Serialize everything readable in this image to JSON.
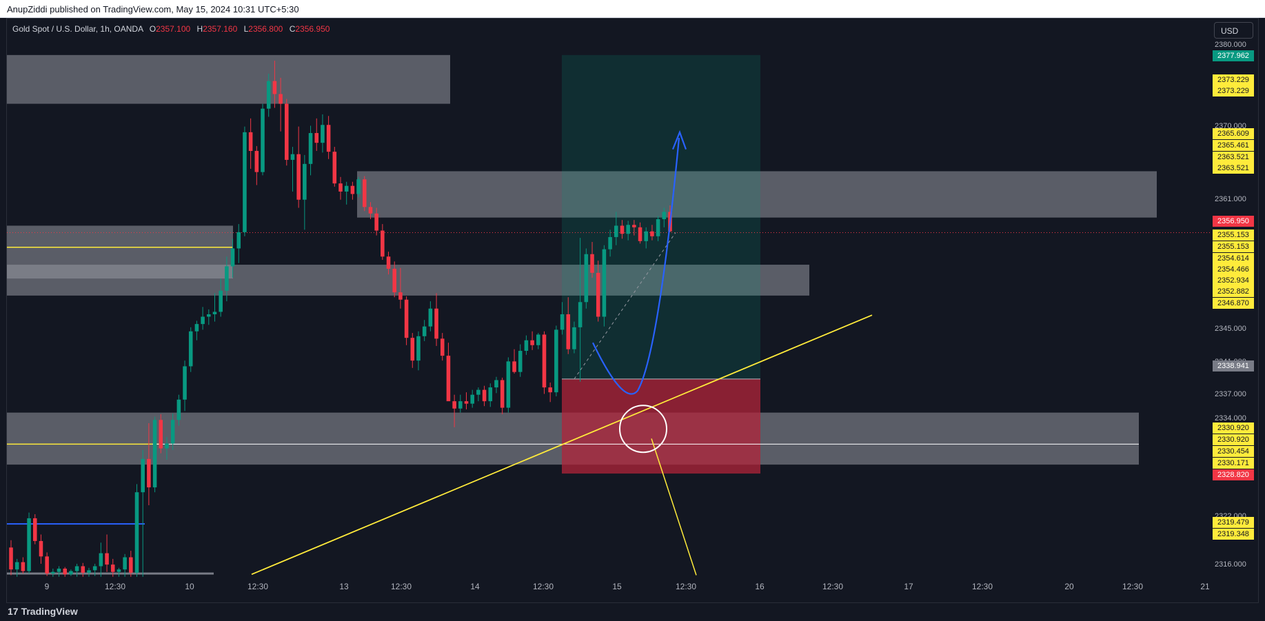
{
  "header": {
    "publisher_text": "AnupZiddi published on TradingView.com, May 15, 2024 10:31 UTC+5:30"
  },
  "symbol": {
    "name": "Gold Spot / U.S. Dollar, 1h, OANDA",
    "open_key": "O",
    "open": "2357.100",
    "high_key": "H",
    "high": "2357.160",
    "low_key": "L",
    "low": "2356.800",
    "close_key": "C",
    "close": "2356.950"
  },
  "currency_button": "USD",
  "footer": {
    "brand": "TradingView",
    "brand_mark": "17"
  },
  "colors": {
    "background": "#131722",
    "up": "#089981",
    "down": "#f23645",
    "zone": "#9598a1",
    "yellow": "#ffeb3b",
    "blue": "#2962ff",
    "profit": "#0b3a35",
    "loss": "#b2243a"
  },
  "chart_data": {
    "type": "candlestick",
    "symbol": "XAUUSD",
    "timeframe": "1h",
    "y_axis_ticks": [
      "2380.000",
      "2370.000",
      "2361.000",
      "2345.000",
      "2341.000",
      "2337.000",
      "2334.000",
      "2322.000",
      "2316.000"
    ],
    "x_axis_ticks": [
      "9",
      "12:30",
      "10",
      "12:30",
      "13",
      "12:30",
      "14",
      "12:30",
      "15",
      "12:30",
      "16",
      "12:30",
      "17",
      "12:30",
      "20",
      "12:30",
      "21"
    ],
    "ylim": [
      2314.5,
      2381.5
    ],
    "candles": [
      [
        2318.2,
        2319.1,
        2314.8,
        2315.5
      ],
      [
        2315.5,
        2316.8,
        2314.6,
        2316.4
      ],
      [
        2316.4,
        2317.0,
        2315.0,
        2315.3
      ],
      [
        2315.3,
        2322.5,
        2315.0,
        2321.8
      ],
      [
        2321.8,
        2322.3,
        2318.6,
        2319.0
      ],
      [
        2319.0,
        2319.8,
        2316.2,
        2317.1
      ],
      [
        2317.1,
        2317.6,
        2314.7,
        2315.0
      ],
      [
        2315.0,
        2315.6,
        2314.6,
        2315.2
      ],
      [
        2315.2,
        2315.9,
        2314.6,
        2315.6
      ],
      [
        2315.6,
        2315.8,
        2314.6,
        2314.9
      ],
      [
        2314.9,
        2315.5,
        2314.7,
        2315.3
      ],
      [
        2315.3,
        2316.2,
        2314.6,
        2315.9
      ],
      [
        2315.9,
        2316.3,
        2314.6,
        2315.1
      ],
      [
        2315.1,
        2315.7,
        2314.6,
        2315.4
      ],
      [
        2315.4,
        2316.2,
        2314.7,
        2315.9
      ],
      [
        2315.9,
        2318.8,
        2314.6,
        2317.5
      ],
      [
        2317.5,
        2319.8,
        2315.2,
        2316.1
      ],
      [
        2316.1,
        2316.8,
        2314.6,
        2315.2
      ],
      [
        2315.2,
        2315.7,
        2314.6,
        2315.5
      ],
      [
        2315.5,
        2317.4,
        2314.6,
        2317.0
      ],
      [
        2317.0,
        2317.8,
        2314.6,
        2315.1
      ],
      [
        2315.1,
        2326.0,
        2314.6,
        2325.0
      ],
      [
        2325.0,
        2330.2,
        2314.6,
        2329.1
      ],
      [
        2329.1,
        2333.5,
        2323.4,
        2325.6
      ],
      [
        2325.6,
        2334.3,
        2325.0,
        2333.9
      ],
      [
        2333.9,
        2334.6,
        2329.8,
        2330.4
      ],
      [
        2330.4,
        2331.8,
        2329.0,
        2331.0
      ],
      [
        2331.0,
        2334.7,
        2330.2,
        2333.9
      ],
      [
        2333.9,
        2337.0,
        2333.2,
        2336.4
      ],
      [
        2336.4,
        2341.2,
        2335.0,
        2340.5
      ],
      [
        2340.5,
        2345.3,
        2339.8,
        2344.8
      ],
      [
        2344.8,
        2346.1,
        2343.7,
        2345.7
      ],
      [
        2345.7,
        2347.8,
        2345.0,
        2346.6
      ],
      [
        2346.6,
        2347.5,
        2345.6,
        2346.9
      ],
      [
        2346.9,
        2349.5,
        2346.0,
        2347.2
      ],
      [
        2347.2,
        2351.3,
        2346.6,
        2349.8
      ],
      [
        2349.8,
        2354.0,
        2348.5,
        2352.8
      ],
      [
        2352.8,
        2356.2,
        2351.4,
        2355.0
      ],
      [
        2355.0,
        2358.0,
        2353.2,
        2357.0
      ],
      [
        2357.0,
        2370.0,
        2356.5,
        2369.3
      ],
      [
        2369.3,
        2371.0,
        2364.8,
        2367.0
      ],
      [
        2367.0,
        2367.6,
        2362.8,
        2364.4
      ],
      [
        2364.4,
        2372.8,
        2364.0,
        2372.2
      ],
      [
        2372.2,
        2376.5,
        2371.2,
        2375.6
      ],
      [
        2375.6,
        2378.1,
        2372.3,
        2374.0
      ],
      [
        2374.0,
        2376.0,
        2369.4,
        2372.8
      ],
      [
        2372.8,
        2373.4,
        2365.2,
        2365.9
      ],
      [
        2365.9,
        2367.5,
        2362.0,
        2366.6
      ],
      [
        2366.6,
        2370.0,
        2360.0,
        2361.0
      ],
      [
        2361.0,
        2366.5,
        2357.3,
        2365.4
      ],
      [
        2365.4,
        2370.1,
        2364.0,
        2369.2
      ],
      [
        2369.2,
        2371.0,
        2367.0,
        2368.0
      ],
      [
        2368.0,
        2371.5,
        2366.8,
        2370.2
      ],
      [
        2370.2,
        2371.3,
        2366.0,
        2366.9
      ],
      [
        2366.9,
        2367.5,
        2362.6,
        2363.0
      ],
      [
        2363.0,
        2363.8,
        2361.0,
        2362.0
      ],
      [
        2362.0,
        2363.2,
        2360.4,
        2362.7
      ],
      [
        2362.7,
        2363.2,
        2361.0,
        2361.7
      ],
      [
        2361.7,
        2363.8,
        2361.3,
        2363.5
      ],
      [
        2363.5,
        2363.9,
        2359.6,
        2360.1
      ],
      [
        2360.1,
        2360.7,
        2358.6,
        2359.3
      ],
      [
        2359.3,
        2360.0,
        2356.6,
        2357.2
      ],
      [
        2357.2,
        2358.0,
        2353.6,
        2354.0
      ],
      [
        2354.0,
        2354.6,
        2351.8,
        2352.5
      ],
      [
        2352.5,
        2353.4,
        2349.0,
        2349.6
      ],
      [
        2349.6,
        2352.6,
        2347.6,
        2348.7
      ],
      [
        2348.7,
        2349.1,
        2343.1,
        2344.0
      ],
      [
        2344.0,
        2344.6,
        2340.3,
        2341.2
      ],
      [
        2341.2,
        2344.8,
        2340.0,
        2344.2
      ],
      [
        2344.2,
        2346.2,
        2343.6,
        2345.4
      ],
      [
        2345.4,
        2348.5,
        2344.8,
        2347.6
      ],
      [
        2347.6,
        2349.5,
        2343.0,
        2343.9
      ],
      [
        2343.9,
        2344.6,
        2341.2,
        2341.8
      ],
      [
        2341.8,
        2343.4,
        2336.6,
        2336.2
      ],
      [
        2336.2,
        2337.0,
        2333.0,
        2335.3
      ],
      [
        2335.3,
        2337.0,
        2334.8,
        2336.2
      ],
      [
        2336.2,
        2337.3,
        2335.2,
        2335.9
      ],
      [
        2335.9,
        2337.6,
        2335.4,
        2337.0
      ],
      [
        2337.0,
        2337.9,
        2336.2,
        2337.6
      ],
      [
        2337.6,
        2338.1,
        2335.6,
        2336.2
      ],
      [
        2336.2,
        2338.4,
        2335.5,
        2337.9
      ],
      [
        2337.9,
        2339.2,
        2337.2,
        2338.8
      ],
      [
        2338.8,
        2339.1,
        2334.6,
        2335.4
      ],
      [
        2335.4,
        2341.6,
        2334.8,
        2341.1
      ],
      [
        2341.1,
        2342.6,
        2339.6,
        2339.8
      ],
      [
        2339.8,
        2343.2,
        2339.2,
        2342.4
      ],
      [
        2342.4,
        2344.3,
        2341.9,
        2343.7
      ],
      [
        2343.7,
        2344.8,
        2342.5,
        2343.1
      ],
      [
        2343.1,
        2344.6,
        2342.6,
        2344.4
      ],
      [
        2344.4,
        2344.8,
        2337.1,
        2337.9
      ],
      [
        2337.9,
        2338.5,
        2336.1,
        2337.3
      ],
      [
        2337.3,
        2345.5,
        2336.8,
        2345.0
      ],
      [
        2345.0,
        2348.4,
        2344.4,
        2346.9
      ],
      [
        2346.9,
        2349.0,
        2342.0,
        2342.6
      ],
      [
        2342.6,
        2346.0,
        2342.1,
        2345.3
      ],
      [
        2345.3,
        2356.3,
        2338.6,
        2348.4
      ],
      [
        2348.4,
        2355.0,
        2347.6,
        2354.3
      ],
      [
        2354.3,
        2355.8,
        2351.4,
        2352.0
      ],
      [
        2352.0,
        2353.5,
        2346.0,
        2346.6
      ],
      [
        2346.6,
        2355.4,
        2345.4,
        2354.9
      ],
      [
        2354.9,
        2357.3,
        2354.0,
        2356.4
      ],
      [
        2356.4,
        2359.5,
        2355.4,
        2357.8
      ],
      [
        2357.8,
        2358.5,
        2356.2,
        2356.8
      ],
      [
        2356.8,
        2358.4,
        2356.0,
        2357.9
      ],
      [
        2357.9,
        2358.5,
        2356.6,
        2357.6
      ],
      [
        2357.6,
        2358.2,
        2355.6,
        2355.9
      ],
      [
        2355.9,
        2357.6,
        2355.0,
        2357.1
      ],
      [
        2357.1,
        2357.9,
        2356.0,
        2356.5
      ],
      [
        2356.5,
        2359.0,
        2355.9,
        2358.6
      ],
      [
        2358.6,
        2360.0,
        2357.6,
        2359.5
      ],
      [
        2359.5,
        2360.3,
        2357.0,
        2357.1
      ]
    ]
  },
  "price_badges": [
    {
      "value": "2377.962",
      "bg": "#089981",
      "fg": "#ffffff"
    },
    {
      "value": "2373.229",
      "bg": "#ffeb3b",
      "fg": "#131722"
    },
    {
      "value": "2373.229",
      "bg": "#ffeb3b",
      "fg": "#131722"
    },
    {
      "value": "2365.609",
      "bg": "#ffeb3b",
      "fg": "#131722"
    },
    {
      "value": "2365.461",
      "bg": "#ffeb3b",
      "fg": "#131722"
    },
    {
      "value": "2363.521",
      "bg": "#ffeb3b",
      "fg": "#131722"
    },
    {
      "value": "2363.521",
      "bg": "#ffeb3b",
      "fg": "#131722"
    },
    {
      "value": "2356.950",
      "bg": "#f23645",
      "fg": "#ffffff"
    },
    {
      "value": "2355.153",
      "bg": "#ffeb3b",
      "fg": "#131722"
    },
    {
      "value": "2355.153",
      "bg": "#ffeb3b",
      "fg": "#131722"
    },
    {
      "value": "2354.614",
      "bg": "#ffeb3b",
      "fg": "#131722"
    },
    {
      "value": "2354.466",
      "bg": "#ffeb3b",
      "fg": "#131722"
    },
    {
      "value": "2352.934",
      "bg": "#ffeb3b",
      "fg": "#131722"
    },
    {
      "value": "2352.882",
      "bg": "#ffeb3b",
      "fg": "#131722"
    },
    {
      "value": "2346.870",
      "bg": "#ffeb3b",
      "fg": "#131722"
    },
    {
      "value": "2338.941",
      "bg": "#787b86",
      "fg": "#ffffff"
    },
    {
      "value": "2330.920",
      "bg": "#ffeb3b",
      "fg": "#131722"
    },
    {
      "value": "2330.920",
      "bg": "#ffeb3b",
      "fg": "#131722"
    },
    {
      "value": "2330.454",
      "bg": "#ffeb3b",
      "fg": "#131722"
    },
    {
      "value": "2330.171",
      "bg": "#ffeb3b",
      "fg": "#131722"
    },
    {
      "value": "2328.820",
      "bg": "#f23645",
      "fg": "#ffffff"
    },
    {
      "value": "2319.479",
      "bg": "#ffeb3b",
      "fg": "#131722"
    },
    {
      "value": "2319.348",
      "bg": "#ffeb3b",
      "fg": "#131722"
    }
  ]
}
